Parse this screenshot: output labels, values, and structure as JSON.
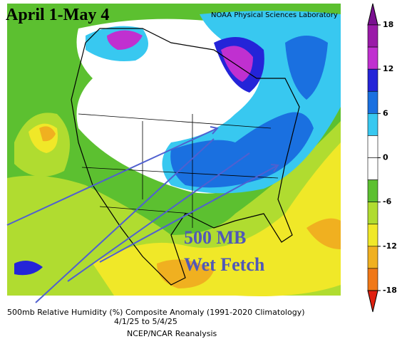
{
  "title": "April 1-May 4",
  "credit": "NOAA Physical Sciences Laboratory",
  "annotation": [
    "500 MB",
    "Wet Fetch"
  ],
  "caption": [
    "500mb Relative Humidity (%) Composite Anomaly (1991-2020 Climatology)",
    "4/1/25  to 5/4/25",
    "NCEP/NCAR Reanalysis"
  ],
  "colorbar": {
    "ticks": [
      18,
      12,
      6,
      0,
      -6,
      -12,
      -18
    ],
    "lim": [
      -18,
      18
    ],
    "step": 3,
    "colors": [
      "#7a1090",
      "#9a1aa8",
      "#c030d0",
      "#2424d8",
      "#1a70e0",
      "#38c8f0",
      "#ffffff",
      "#ffffff",
      "#5cc030",
      "#b0dc30",
      "#f0e828",
      "#f0b020",
      "#f07818",
      "#e02010"
    ]
  }
}
